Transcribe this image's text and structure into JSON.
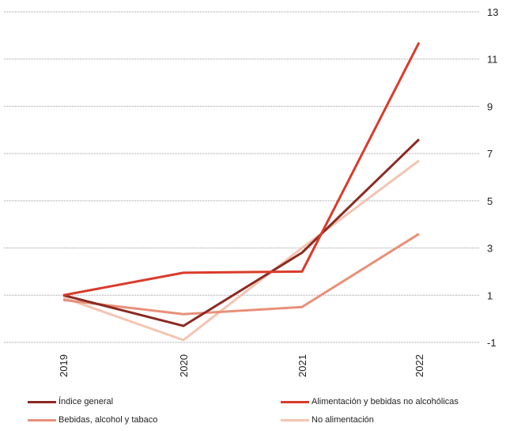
{
  "chart_data": {
    "type": "line",
    "categories": [
      "2019",
      "2020",
      "2021",
      "2022"
    ],
    "ylim": [
      -1,
      13
    ],
    "yticks": [
      -1,
      1,
      3,
      5,
      7,
      9,
      11,
      13
    ],
    "grid": true,
    "legend_placement": "bottom",
    "series": [
      {
        "name": "Índice general",
        "color": "#8b2a22",
        "values": [
          1.0,
          -0.3,
          2.8,
          7.6
        ]
      },
      {
        "name": "Alimentación y bebidas no alcohólicas",
        "color": "#d93b2b",
        "values": [
          1.0,
          1.95,
          2.0,
          11.7
        ]
      },
      {
        "name": "Bebidas, alcohol y tabaco",
        "color": "#e8907a",
        "values": [
          0.8,
          0.2,
          0.5,
          3.6
        ]
      },
      {
        "name": "No alimentación",
        "color": "#f3c4b1",
        "values": [
          0.9,
          -0.9,
          3.0,
          6.7
        ]
      }
    ]
  }
}
